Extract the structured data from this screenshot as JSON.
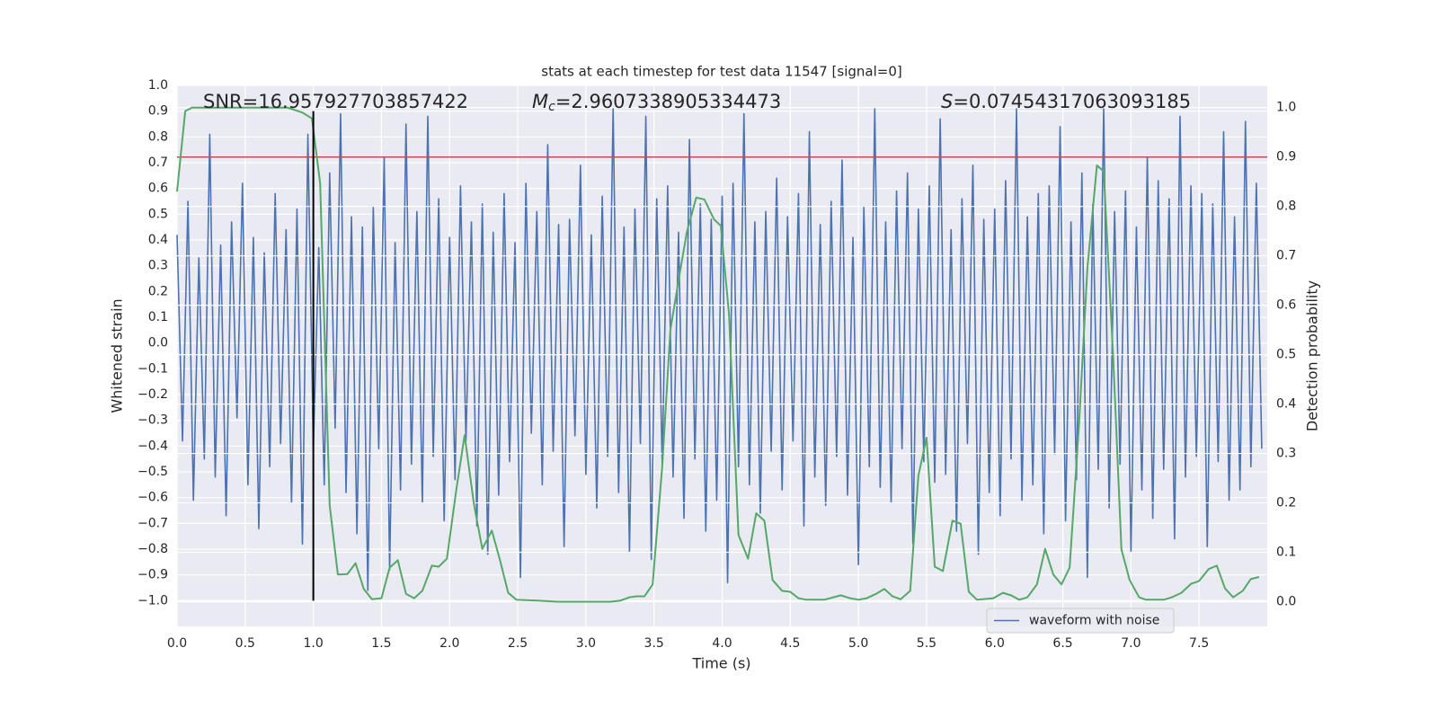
{
  "chart_data": {
    "type": "line",
    "title": "stats at each timestep for test data 11547 [signal=0]",
    "xlabel": "Time (s)",
    "ylabel": "Whitened strain",
    "y2label": "Detection probability",
    "xlim": [
      0,
      8
    ],
    "ylim": [
      -1.1,
      1.0
    ],
    "y2lim": [
      -0.05,
      1.045
    ],
    "xticks": [
      {
        "value": 0,
        "label": "0.0"
      },
      0.5,
      {
        "value": 1,
        "label": "1.0"
      },
      1.5,
      {
        "value": 2,
        "label": "2.0"
      },
      2.5,
      {
        "value": 3,
        "label": "3.0"
      },
      3.5,
      {
        "value": 4,
        "label": "4.0"
      },
      4.5,
      {
        "value": 5,
        "label": "5.0"
      },
      5.5,
      {
        "value": 6,
        "label": "6.0"
      },
      6.5,
      {
        "value": 7,
        "label": "7.0"
      },
      7.5
    ],
    "yticks": [
      {
        "value": -1,
        "label": "−1.0"
      },
      {
        "value": -0.9,
        "label": "−0.9"
      },
      {
        "value": -0.8,
        "label": "−0.8"
      },
      {
        "value": -0.7,
        "label": "−0.7"
      },
      {
        "value": -0.6,
        "label": "−0.6"
      },
      {
        "value": -0.5,
        "label": "−0.5"
      },
      {
        "value": -0.4,
        "label": "−0.4"
      },
      {
        "value": -0.3,
        "label": "−0.3"
      },
      {
        "value": -0.2,
        "label": "−0.2"
      },
      {
        "value": -0.1,
        "label": "−0.1"
      },
      {
        "value": 0,
        "label": "0.0"
      },
      0.1,
      0.2,
      0.3,
      0.4,
      0.5,
      0.6,
      0.7,
      0.8,
      0.9,
      {
        "value": 1,
        "label": "1.0"
      }
    ],
    "y2ticks": [
      {
        "value": 0,
        "label": "0.0"
      },
      0.1,
      0.2,
      0.3,
      0.4,
      0.5,
      0.6,
      0.7,
      0.8,
      0.9,
      {
        "value": 1,
        "label": "1.0"
      }
    ],
    "grid": true,
    "legend": "lower right",
    "series": [
      {
        "name": "waveform with noise",
        "color": "#4c72b0",
        "x": [
          0,
          0.04,
          0.08,
          0.12,
          0.16,
          0.2,
          0.24,
          0.28,
          0.32,
          0.36,
          0.4,
          0.44,
          0.48,
          0.52,
          0.56,
          0.6,
          0.64,
          0.68,
          0.72,
          0.76,
          0.8,
          0.84,
          0.88,
          0.92,
          0.96,
          1.0,
          1.04,
          1.08,
          1.12,
          1.16,
          1.2,
          1.24,
          1.28,
          1.32,
          1.36,
          1.4,
          1.44,
          1.48,
          1.52,
          1.56,
          1.6,
          1.64,
          1.68,
          1.72,
          1.76,
          1.8,
          1.84,
          1.88,
          1.92,
          1.96,
          2.0,
          2.04,
          2.08,
          2.12,
          2.16,
          2.2,
          2.24,
          2.28,
          2.32,
          2.36,
          2.4,
          2.44,
          2.48,
          2.52,
          2.56,
          2.6,
          2.64,
          2.68,
          2.72,
          2.76,
          2.8,
          2.84,
          2.88,
          2.92,
          2.96,
          3.0,
          3.04,
          3.08,
          3.12,
          3.16,
          3.2,
          3.24,
          3.28,
          3.32,
          3.36,
          3.4,
          3.44,
          3.48,
          3.52,
          3.56,
          3.6,
          3.64,
          3.68,
          3.72,
          3.76,
          3.8,
          3.84,
          3.88,
          3.92,
          3.96,
          4.0,
          4.04,
          4.08,
          4.12,
          4.16,
          4.2,
          4.24,
          4.28,
          4.32,
          4.36,
          4.4,
          4.44,
          4.48,
          4.52,
          4.56,
          4.6,
          4.64,
          4.68,
          4.72,
          4.76,
          4.8,
          4.84,
          4.88,
          4.92,
          4.96,
          5.0,
          5.04,
          5.08,
          5.12,
          5.16,
          5.2,
          5.24,
          5.28,
          5.32,
          5.36,
          5.4,
          5.44,
          5.48,
          5.52,
          5.56,
          5.6,
          5.64,
          5.68,
          5.72,
          5.76,
          5.8,
          5.84,
          5.88,
          5.92,
          5.96,
          6.0,
          6.04,
          6.08,
          6.12,
          6.16,
          6.2,
          6.24,
          6.28,
          6.32,
          6.36,
          6.4,
          6.44,
          6.48,
          6.52,
          6.56,
          6.6,
          6.64,
          6.68,
          6.72,
          6.76,
          6.8,
          6.84,
          6.88,
          6.92,
          6.96,
          7.0,
          7.04,
          7.08,
          7.12,
          7.16,
          7.2,
          7.24,
          7.28,
          7.32,
          7.36,
          7.4,
          7.44,
          7.48,
          7.52,
          7.56,
          7.6,
          7.64,
          7.68,
          7.72,
          7.76,
          7.8,
          7.84,
          7.88,
          7.92,
          7.96
        ],
        "values": [
          0.42,
          -0.38,
          0.55,
          -0.61,
          0.33,
          -0.45,
          0.81,
          -0.52,
          0.38,
          -0.67,
          0.47,
          -0.29,
          0.62,
          -0.55,
          0.41,
          -0.72,
          0.35,
          -0.48,
          0.58,
          -0.39,
          0.44,
          -0.62,
          0.52,
          -0.78,
          0.81,
          -0.41,
          0.37,
          -0.55,
          0.66,
          -0.33,
          0.89,
          -0.58,
          0.49,
          -0.74,
          0.45,
          -0.96,
          0.53,
          -0.41,
          0.72,
          -0.88,
          0.39,
          -0.57,
          0.85,
          -0.47,
          0.51,
          -0.62,
          0.88,
          -0.44,
          0.56,
          -0.69,
          0.41,
          -0.53,
          0.61,
          -0.38,
          0.47,
          -0.71,
          0.54,
          -0.82,
          0.43,
          -0.59,
          0.58,
          -0.46,
          0.39,
          -0.91,
          0.62,
          -0.35,
          0.51,
          -0.55,
          0.77,
          -0.42,
          0.46,
          -0.79,
          0.48,
          -0.36,
          0.69,
          -0.51,
          0.42,
          -0.64,
          0.57,
          -0.44,
          0.91,
          -0.58,
          0.45,
          -0.81,
          0.52,
          -0.39,
          0.88,
          -0.84,
          0.56,
          -0.47,
          0.61,
          -0.52,
          0.43,
          -0.68,
          0.79,
          -0.45,
          0.54,
          -0.73,
          0.48,
          -0.61,
          0.57,
          -0.93,
          0.62,
          -0.48,
          0.89,
          -0.55,
          0.47,
          -0.66,
          0.51,
          -0.42,
          0.64,
          -0.57,
          0.49,
          -0.38,
          0.58,
          -0.71,
          0.82,
          -0.52,
          0.46,
          -0.63,
          0.55,
          -0.44,
          0.71,
          -0.59,
          0.41,
          -0.86,
          0.53,
          -0.48,
          0.91,
          -0.56,
          0.47,
          -0.62,
          0.59,
          -0.41,
          0.66,
          -0.78,
          0.52,
          -0.46,
          0.61,
          -0.54,
          0.87,
          -0.51,
          0.44,
          -0.73,
          0.56,
          -0.39,
          0.69,
          -0.82,
          0.48,
          -0.58,
          0.52,
          -0.67,
          0.63,
          -0.45,
          0.91,
          -0.61,
          0.49,
          -0.55,
          0.58,
          -0.74,
          0.61,
          -0.43,
          0.84,
          -0.69,
          0.47,
          -0.53,
          0.66,
          -0.91,
          0.54,
          -0.49,
          0.91,
          -0.64,
          0.51,
          -0.47,
          0.59,
          -0.81,
          0.45,
          -0.57,
          0.72,
          -0.68,
          0.63,
          -0.49,
          0.56,
          -0.76,
          0.88,
          -0.52,
          0.61,
          -0.44,
          0.58,
          -0.79,
          0.54,
          -0.46,
          0.82,
          -0.61,
          0.49,
          -0.57,
          0.86,
          -0.48,
          0.62,
          -0.41
        ]
      },
      {
        "color": "#55a868",
        "axis": "y2",
        "x": [
          0,
          0.06,
          0.11,
          0.81,
          0.92,
          0.99,
          1.05,
          1.12,
          1.18,
          1.25,
          1.31,
          1.37,
          1.43,
          1.5,
          1.56,
          1.62,
          1.68,
          1.74,
          1.8,
          1.87,
          1.92,
          1.98,
          2.05,
          2.11,
          2.18,
          2.24,
          2.31,
          2.37,
          2.43,
          2.49,
          2.66,
          2.79,
          3.18,
          3.25,
          3.32,
          3.37,
          3.43,
          3.49,
          3.56,
          3.62,
          3.68,
          3.74,
          3.81,
          3.87,
          3.94,
          3.99,
          4.05,
          4.12,
          4.19,
          4.25,
          4.31,
          4.37,
          4.44,
          4.5,
          4.56,
          4.62,
          4.75,
          4.87,
          4.94,
          5.0,
          5.06,
          5.13,
          5.19,
          5.25,
          5.31,
          5.38,
          5.44,
          5.5,
          5.56,
          5.62,
          5.69,
          5.75,
          5.81,
          5.87,
          5.99,
          6.06,
          6.12,
          6.18,
          6.24,
          6.31,
          6.37,
          6.43,
          6.49,
          6.55,
          6.62,
          6.68,
          6.75,
          6.8,
          6.87,
          6.93,
          6.99,
          7.06,
          7.11,
          7.24,
          7.3,
          7.37,
          7.44,
          7.5,
          7.57,
          7.63,
          7.69,
          7.75,
          7.82,
          7.88,
          7.94
        ],
        "values": [
          0.83,
          0.993,
          1.0,
          1.0,
          0.99,
          0.978,
          0.847,
          0.195,
          0.055,
          0.056,
          0.078,
          0.026,
          0.005,
          0.007,
          0.069,
          0.084,
          0.016,
          0.007,
          0.022,
          0.073,
          0.071,
          0.087,
          0.228,
          0.337,
          0.195,
          0.107,
          0.144,
          0.084,
          0.018,
          0.004,
          0.002,
          0.0,
          0.0,
          0.002,
          0.009,
          0.011,
          0.011,
          0.035,
          0.273,
          0.55,
          0.65,
          0.747,
          0.818,
          0.814,
          0.774,
          0.761,
          0.583,
          0.135,
          0.087,
          0.179,
          0.164,
          0.044,
          0.022,
          0.02,
          0.007,
          0.004,
          0.004,
          0.013,
          0.007,
          0.004,
          0.007,
          0.016,
          0.026,
          0.011,
          0.005,
          0.022,
          0.255,
          0.332,
          0.071,
          0.062,
          0.164,
          0.158,
          0.02,
          0.004,
          0.007,
          0.018,
          0.013,
          0.004,
          0.009,
          0.035,
          0.107,
          0.055,
          0.035,
          0.069,
          0.364,
          0.674,
          0.883,
          0.871,
          0.492,
          0.106,
          0.044,
          0.009,
          0.004,
          0.004,
          0.009,
          0.018,
          0.036,
          0.042,
          0.066,
          0.073,
          0.027,
          0.009,
          0.022,
          0.046,
          0.05
        ]
      }
    ],
    "hlines": [
      {
        "y": 0.9,
        "axis": "y2",
        "color": "#c44e52"
      }
    ],
    "vlines": [
      {
        "x": 1.0,
        "ymin": -1.0,
        "ymax": 0.9,
        "color": "#000000"
      }
    ],
    "annotations": [
      {
        "text": "SNR=16.957927703857422"
      },
      {
        "italic": "M",
        "subscript": "c",
        "text": "=2.9607338905334473"
      },
      {
        "italic": "S",
        "text": "=0.07454317063093185"
      }
    ]
  }
}
